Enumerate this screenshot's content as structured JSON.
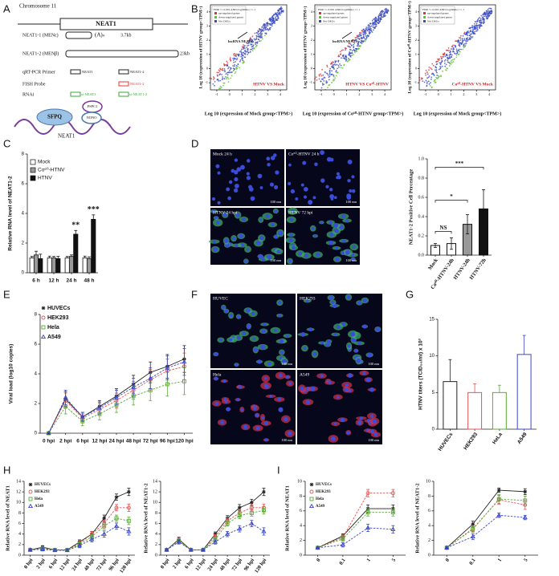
{
  "panel_labels": [
    "A",
    "B",
    "C",
    "D",
    "E",
    "F",
    "G",
    "H",
    "I"
  ],
  "panel_a": {
    "chromosome": "Chromosome 11",
    "gene": "NEAT1",
    "neat1_1": "NEAT1-1 (MENε)",
    "polya": "(A)ₙ",
    "neat1_1_len": "3.7kb",
    "neat1_2": "NEAT1-2 (MENβ)",
    "neat1_2_len": "23kb",
    "primer": "qRT-PCR Primer",
    "primer_1": "NEAT1",
    "primer_2": "NEAT1-2",
    "fish": "FISH Probe",
    "fish_probe": "NEAT1-2",
    "rnai": "RNAi",
    "si_1": "si-NEAT1",
    "si_2": "si-NEAT1-2",
    "proteins": [
      "SFPQ",
      "PSPC1",
      "NONO"
    ],
    "rna": "NEAT1"
  },
  "images": {
    "d": {
      "labels": [
        "Mock 24 h",
        "Co⁶⁰-HTNV 24 h",
        "HTNV 24 hpi",
        "HTNV 72 hpi"
      ],
      "scale": "100 nm"
    },
    "f": {
      "labels": [
        "HUVEC",
        "HEK293",
        "Hela",
        "A549"
      ],
      "scale": "100 nm"
    }
  },
  "chart_data": [
    {
      "type": "scatter",
      "xlabel": "Log 10 (expression of Mock group<TPM>)",
      "ylabel": "Log 10 (expression of HTNV group<TPM>)",
      "xlim": [
        -1.5,
        4.5
      ],
      "ylim": [
        -1.5,
        4.5
      ],
      "xticks": [
        -1,
        0,
        1,
        2,
        3,
        4
      ],
      "yticks": [
        -1,
        0,
        1,
        2,
        3,
        4
      ],
      "legend_title": "FDR <= 0.001 AND |log2Ratio| >= 1",
      "legend_items": [
        {
          "name": "up-regulated genes",
          "color": "#e8302a"
        },
        {
          "name": "down-regulated genes",
          "color": "#5fbf3a"
        },
        {
          "name": "Not DEGs",
          "color": "#3b4cc0"
        }
      ],
      "annotation": "lncRNA NEAT1",
      "comparison": "HTNV VS Mock"
    },
    {
      "type": "scatter",
      "xlabel": "Log 10 (expression of Co⁶⁰-HTNV group<TPM>)",
      "ylabel": "Log 10 (expression of HTNV group<TPM>)",
      "xlim": [
        -1.5,
        4.5
      ],
      "ylim": [
        -1.5,
        4.5
      ],
      "xticks": [
        -1,
        0,
        1,
        2,
        3,
        4
      ],
      "yticks": [
        -1,
        0,
        1,
        2,
        3,
        4
      ],
      "legend_title": "FDR <= 0.001 AND |log2Ratio| >= 1",
      "legend_items": [
        {
          "name": "up-regulated genes",
          "color": "#e8302a"
        },
        {
          "name": "down-regulated genes",
          "color": "#5fbf3a"
        },
        {
          "name": "Not DEGs",
          "color": "#3b4cc0"
        }
      ],
      "annotation": "lncRNA NEAT1",
      "comparison": "HTNV VS Co⁶⁰-HTNV"
    },
    {
      "type": "scatter",
      "xlabel": "Log 10 (expression of Mock group<TPM>)",
      "ylabel": "Log 10 (expression of Co⁶⁰-HTNV group<TPM>)",
      "xlim": [
        -1.5,
        4.5
      ],
      "ylim": [
        -1.5,
        4.5
      ],
      "xticks": [
        -1,
        0,
        1,
        2,
        3,
        4
      ],
      "yticks": [
        -1,
        0,
        1,
        2,
        3,
        4
      ],
      "legend_title": "FDR <= 0.001 AND |log2Ratio| >= 1",
      "legend_items": [
        {
          "name": "up-regulated genes",
          "color": "#e8302a"
        },
        {
          "name": "down-regulated genes",
          "color": "#5fbf3a"
        },
        {
          "name": "Not DEGs",
          "color": "#3b4cc0"
        }
      ],
      "comparison": "Co⁶⁰-HTNV VS Mock"
    },
    {
      "type": "bar",
      "ylabel": "Relative RNA level of NEAT1-2",
      "categories": [
        "6 h",
        "12 h",
        "24 h",
        "48 h"
      ],
      "ylim": [
        0,
        8
      ],
      "yticks": [
        0,
        2,
        4,
        6,
        8
      ],
      "legend": "upper left",
      "series": [
        {
          "name": "Mock",
          "color": "#ffffff",
          "values": [
            1,
            1,
            1,
            1
          ],
          "errors": [
            0.1,
            0.12,
            0.1,
            0.12
          ]
        },
        {
          "name": "Co⁶⁰-HTNV",
          "color": "#999999",
          "values": [
            1.2,
            1,
            1.1,
            0.95
          ],
          "errors": [
            0.25,
            0.1,
            0.1,
            0.12
          ]
        },
        {
          "name": "HTNV",
          "color": "#111111",
          "values": [
            0.95,
            0.95,
            2.6,
            3.6
          ],
          "errors": [
            0.3,
            0.15,
            0.25,
            0.3
          ]
        }
      ],
      "annotations": [
        "**",
        "***"
      ]
    },
    {
      "type": "bar",
      "ylabel": "NEAT1-2 Positive Cell Percentage",
      "categories": [
        "Mock",
        "Co⁶⁰-HTNV-24h",
        "HTNV-24h",
        "HTNV-72h"
      ],
      "values": [
        0.1,
        0.12,
        0.32,
        0.48
      ],
      "errors": [
        0.02,
        0.06,
        0.1,
        0.2
      ],
      "colors": [
        "#ffffff",
        "#ffffff",
        "#999999",
        "#111111"
      ],
      "ylim": [
        0,
        1
      ],
      "yticks": [
        {
          "value": 0,
          "label": "0.0"
        },
        0.2,
        0.4,
        0.6,
        0.8,
        {
          "value": 1,
          "label": "1.0"
        }
      ],
      "annotations": [
        "NS",
        "*",
        "***"
      ]
    },
    {
      "type": "line",
      "ylabel": "Viral load (log10 copies)",
      "categories": [
        "0 hpi",
        "2 hpi",
        "6 hpi",
        "12 hpi",
        "24 hpi",
        "48 hpi",
        "72 hpi",
        "96 hpi",
        "120 hpi"
      ],
      "ylim": [
        0,
        8
      ],
      "yticks": [
        0,
        2,
        4,
        6,
        8
      ],
      "legend": "upper left",
      "series": [
        {
          "name": "HUVECs",
          "color": "#222222",
          "marker": "star",
          "dashed": false,
          "values": [
            0,
            2.3,
            1.1,
            1.8,
            2.5,
            3.3,
            4.1,
            4.5,
            5.0
          ],
          "errors": [
            0,
            0.5,
            0.3,
            0.4,
            0.5,
            0.6,
            0.7,
            0.8,
            0.9
          ]
        },
        {
          "name": "HEK293",
          "color": "#e05555",
          "marker": "circle",
          "dashed": true,
          "values": [
            0,
            2.2,
            1.0,
            1.6,
            2.2,
            2.9,
            3.6,
            4.2,
            4.5
          ],
          "errors": [
            0,
            0.5,
            0.3,
            0.4,
            0.5,
            0.6,
            0.7,
            0.8,
            0.9
          ]
        },
        {
          "name": "Hela",
          "color": "#5aab34",
          "marker": "square",
          "dashed": true,
          "values": [
            0,
            1.8,
            0.8,
            1.3,
            1.9,
            2.5,
            2.9,
            3.3,
            3.5
          ],
          "errors": [
            0,
            0.5,
            0.3,
            0.4,
            0.5,
            0.6,
            0.7,
            0.8,
            0.9
          ]
        },
        {
          "name": "A549",
          "color": "#3b46c8",
          "marker": "triangle",
          "dashed": true,
          "values": [
            0,
            2.4,
            1.1,
            1.7,
            2.4,
            3.1,
            3.7,
            4.4,
            4.8
          ],
          "errors": [
            0,
            0.5,
            0.3,
            0.4,
            0.5,
            0.6,
            0.7,
            0.8,
            0.9
          ]
        }
      ]
    },
    {
      "type": "bar",
      "ylabel": "HTNV titers (TCID₅₀/ml) x 10³",
      "categories": [
        "HUVECs",
        "HEK293",
        "HeLa",
        "A549"
      ],
      "values": [
        6.5,
        5,
        5,
        10.2
      ],
      "errors": [
        3,
        1.2,
        1,
        2.6
      ],
      "edgecolors": [
        "#222222",
        "#e05555",
        "#5aab34",
        "#3b46c8"
      ],
      "ylim": [
        0,
        15
      ],
      "yticks": [
        0,
        5,
        10,
        15
      ]
    },
    {
      "type": "line",
      "ylabel": "Relative RNA level of NEAT1",
      "categories": [
        "0 hpi",
        "2 hpi",
        "6 hpi",
        "12 hpi",
        "24 hpi",
        "48 hpi",
        "72 hpi",
        "96 hpi",
        "120 hpi"
      ],
      "ylim": [
        0,
        14
      ],
      "yticks": [
        0,
        2,
        4,
        6,
        8,
        10,
        12,
        14
      ],
      "legend": "upper left",
      "series": [
        {
          "name": "HUVECs",
          "color": "#222222",
          "marker": "star",
          "dashed": false,
          "values": [
            1,
            1.5,
            1,
            1,
            2.5,
            4,
            7,
            11,
            12
          ],
          "errors": [
            0.2,
            0.3,
            0.2,
            0.2,
            0.4,
            0.5,
            0.6,
            0.6,
            0.7
          ]
        },
        {
          "name": "HEK293",
          "color": "#e05555",
          "marker": "circle",
          "dashed": true,
          "values": [
            1,
            1.3,
            1,
            1,
            2.2,
            4,
            6,
            9,
            9
          ],
          "errors": [
            0.2,
            0.3,
            0.2,
            0.2,
            0.4,
            0.5,
            0.6,
            0.6,
            0.7
          ]
        },
        {
          "name": "Hela",
          "color": "#5aab34",
          "marker": "square",
          "dashed": true,
          "values": [
            1,
            1.2,
            1,
            1,
            2,
            3.5,
            5.5,
            7,
            6.5
          ],
          "errors": [
            0.2,
            0.3,
            0.2,
            0.2,
            0.4,
            0.5,
            0.6,
            0.6,
            0.7
          ]
        },
        {
          "name": "A549",
          "color": "#3b46c8",
          "marker": "triangle",
          "dashed": true,
          "values": [
            1,
            1.1,
            0.9,
            0.9,
            1.8,
            3,
            4,
            5.5,
            4.5
          ],
          "errors": [
            0.2,
            0.3,
            0.2,
            0.2,
            0.4,
            0.5,
            0.6,
            0.6,
            0.7
          ]
        }
      ]
    },
    {
      "type": "line",
      "ylabel": "Relative RNA level of NEAT1-2",
      "categories": [
        "0 hpi",
        "2 hpi",
        "6 hpi",
        "12 hpi",
        "24 hpi",
        "48 hpi",
        "72 hpi",
        "96 hpi",
        "120 hpi"
      ],
      "ylim": [
        0,
        14
      ],
      "yticks": [
        0,
        2,
        4,
        6,
        8,
        10,
        12,
        14
      ],
      "series": [
        {
          "name": "HUVECs",
          "color": "#222222",
          "marker": "star",
          "dashed": false,
          "values": [
            1,
            3,
            1,
            1,
            4,
            7,
            9,
            10,
            12
          ],
          "errors": [
            0.2,
            0.4,
            0.2,
            0.2,
            0.4,
            0.5,
            0.6,
            0.6,
            0.7
          ]
        },
        {
          "name": "HEK293",
          "color": "#e05555",
          "marker": "circle",
          "dashed": true,
          "values": [
            1,
            2.8,
            1,
            1,
            3.5,
            6.5,
            8,
            9,
            9
          ],
          "errors": [
            0.2,
            0.4,
            0.2,
            0.2,
            0.4,
            0.5,
            0.6,
            0.6,
            0.7
          ]
        },
        {
          "name": "Hela",
          "color": "#5aab34",
          "marker": "square",
          "dashed": true,
          "values": [
            1,
            2.7,
            1,
            1,
            3,
            6,
            7.5,
            8,
            8.5
          ],
          "errors": [
            0.2,
            0.4,
            0.2,
            0.2,
            0.4,
            0.5,
            0.6,
            0.6,
            0.7
          ]
        },
        {
          "name": "A549",
          "color": "#3b46c8",
          "marker": "triangle",
          "dashed": true,
          "values": [
            1,
            2.5,
            1,
            1,
            2.5,
            4,
            5,
            6,
            4.5
          ],
          "errors": [
            0.2,
            0.4,
            0.2,
            0.2,
            0.4,
            0.5,
            0.6,
            0.6,
            0.7
          ]
        }
      ]
    },
    {
      "type": "line",
      "ylabel": "Relative RNA level of NEAT1",
      "categories": [
        "0",
        "0.1",
        "1",
        "5"
      ],
      "ylim": [
        0,
        10
      ],
      "yticks": [
        0,
        2,
        4,
        6,
        8,
        10
      ],
      "legend": "upper left",
      "series": [
        {
          "name": "HUVECs",
          "color": "#222222",
          "marker": "star",
          "dashed": false,
          "values": [
            1,
            2.6,
            6.3,
            6.3
          ],
          "errors": [
            0.1,
            0.3,
            0.5,
            0.5
          ]
        },
        {
          "name": "HEK293",
          "color": "#e05555",
          "marker": "circle",
          "dashed": true,
          "values": [
            1,
            2.4,
            8.4,
            8.4
          ],
          "errors": [
            0.1,
            0.3,
            0.5,
            0.5
          ]
        },
        {
          "name": "Hela",
          "color": "#5aab34",
          "marker": "square",
          "dashed": true,
          "values": [
            1,
            2.2,
            5.8,
            5.8
          ],
          "errors": [
            0.1,
            0.3,
            0.5,
            0.5
          ]
        },
        {
          "name": "A549",
          "color": "#3b46c8",
          "marker": "triangle",
          "dashed": true,
          "values": [
            1,
            1.4,
            3.7,
            3.5
          ],
          "errors": [
            0.1,
            0.3,
            0.5,
            0.5
          ]
        }
      ]
    },
    {
      "type": "line",
      "ylabel": "Relative RNA level of NEAT1-2",
      "categories": [
        "0",
        "0.1",
        "1",
        "5"
      ],
      "ylim": [
        0,
        10
      ],
      "yticks": [
        0,
        2,
        4,
        6,
        8,
        10
      ],
      "series": [
        {
          "name": "HUVECs",
          "color": "#222222",
          "marker": "star",
          "dashed": false,
          "values": [
            1,
            4.2,
            8.8,
            8.6
          ],
          "errors": [
            0.2,
            0.4,
            0.3,
            0.4
          ]
        },
        {
          "name": "HEK293",
          "color": "#e05555",
          "marker": "circle",
          "dashed": true,
          "values": [
            1,
            3.6,
            7.5,
            6.8
          ],
          "errors": [
            0.2,
            0.4,
            0.6,
            0.6
          ]
        },
        {
          "name": "Hela",
          "color": "#5aab34",
          "marker": "square",
          "dashed": true,
          "values": [
            1,
            3.5,
            7.6,
            7.4
          ],
          "errors": [
            0.2,
            0.4,
            0.6,
            0.6
          ]
        },
        {
          "name": "A549",
          "color": "#3b46c8",
          "marker": "triangle",
          "dashed": true,
          "values": [
            1,
            2.5,
            5.4,
            5.1
          ],
          "errors": [
            0.2,
            0.4,
            0.3,
            0.3
          ]
        }
      ]
    }
  ]
}
